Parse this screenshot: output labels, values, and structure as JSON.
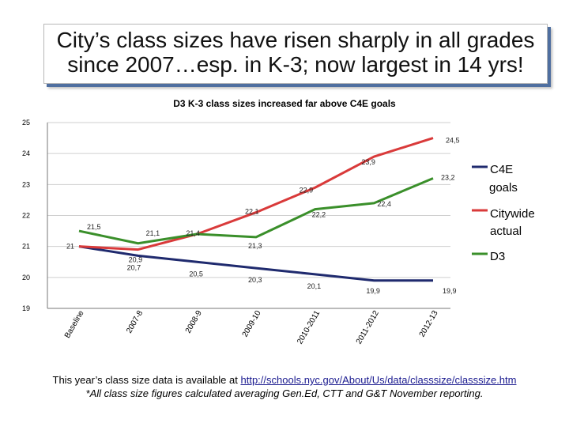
{
  "title_lines": [
    "City’s class sizes have risen sharply in all grades",
    "since 2007…esp. in K-3; now largest in 14 yrs!"
  ],
  "footnote": {
    "text_before_link": "This year’s class size data is available at ",
    "link": "http://schools.nyc.gov/About/Us/data/classsize/classsize.htm",
    "note": "*All class size figures calculated averaging Gen.Ed, CTT and G&T November reporting."
  },
  "chart_data": {
    "type": "line",
    "title": "D3 K-3 class sizes increased far above C4E goals",
    "xlabel": "",
    "ylabel": "",
    "categories": [
      "Baseline",
      "2007-8",
      "2008-9",
      "2009-10",
      "2010-2011",
      "2011-2012",
      "2012-13"
    ],
    "ylim": [
      19,
      25
    ],
    "yticks": [
      "19",
      "20",
      "21",
      "22",
      "23",
      "24",
      "25"
    ],
    "series": [
      {
        "name": "C4E goals",
        "color": "#1f2a6e",
        "values": [
          21.0,
          20.7,
          20.5,
          20.3,
          20.1,
          19.9,
          19.9
        ],
        "labels": [
          "21",
          "20,7",
          "20,5",
          "20,3",
          "20,1",
          "19,9",
          "19,9"
        ]
      },
      {
        "name": "Citywide actual",
        "color": "#d93a3a",
        "values": [
          21.0,
          20.9,
          21.4,
          22.1,
          22.9,
          23.9,
          24.5
        ],
        "labels": [
          "",
          "20,9",
          "21,4",
          "22,1",
          "22,9",
          "23,9",
          "24,5"
        ]
      },
      {
        "name": "D3",
        "color": "#3a8f2a",
        "values": [
          21.5,
          21.1,
          21.4,
          21.3,
          22.2,
          22.4,
          23.2
        ],
        "labels": [
          "21,5",
          "21,1",
          "",
          "21,3",
          "22,2",
          "22,4",
          "23,2"
        ]
      }
    ],
    "legend_position": "right"
  }
}
